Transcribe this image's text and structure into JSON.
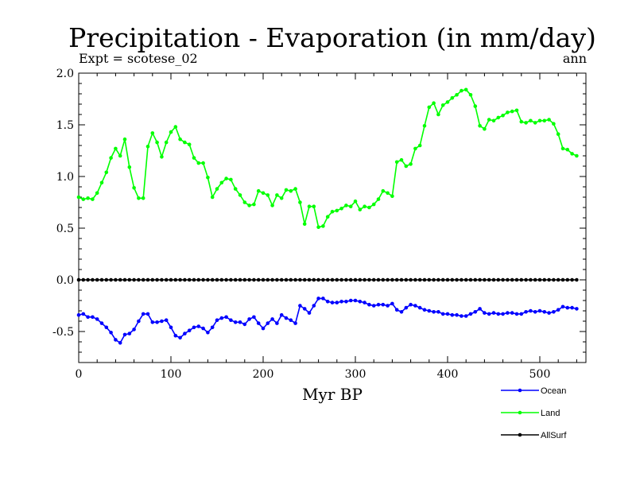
{
  "chart_data": {
    "type": "line",
    "title": "Precipitation - Evaporation (in mm/day)",
    "subtitle_left": "Expt = scotese_02",
    "subtitle_right": "ann",
    "xlabel": "Myr BP",
    "ylabel": "",
    "xlim": [
      0,
      550
    ],
    "ylim": [
      -0.8,
      2.0
    ],
    "x_ticks": [
      0,
      100,
      200,
      300,
      400,
      500
    ],
    "y_ticks": [
      -0.5,
      0.0,
      0.5,
      1.0,
      1.5,
      2.0
    ],
    "y_tick_labels": [
      "-0.5",
      "0.0",
      "0.5",
      "1.0",
      "1.5",
      "2.0"
    ],
    "grid": false,
    "legend_position": "bottom-right",
    "x": [
      0,
      5,
      10,
      15,
      20,
      25,
      30,
      35,
      40,
      45,
      50,
      55,
      60,
      65,
      70,
      75,
      80,
      85,
      90,
      95,
      100,
      105,
      110,
      115,
      120,
      125,
      130,
      135,
      140,
      145,
      150,
      155,
      160,
      165,
      170,
      175,
      180,
      185,
      190,
      195,
      200,
      205,
      210,
      215,
      220,
      225,
      230,
      235,
      240,
      245,
      250,
      255,
      260,
      265,
      270,
      275,
      280,
      285,
      290,
      295,
      300,
      305,
      310,
      315,
      320,
      325,
      330,
      335,
      340,
      345,
      350,
      355,
      360,
      365,
      370,
      375,
      380,
      385,
      390,
      395,
      400,
      405,
      410,
      415,
      420,
      425,
      430,
      435,
      440,
      445,
      450,
      455,
      460,
      465,
      470,
      475,
      480,
      485,
      490,
      495,
      500,
      505,
      510,
      515,
      520,
      525,
      530,
      535,
      540
    ],
    "series": [
      {
        "name": "Ocean",
        "color": "#0000ff",
        "values": [
          -0.34,
          -0.33,
          -0.36,
          -0.36,
          -0.38,
          -0.42,
          -0.46,
          -0.51,
          -0.58,
          -0.61,
          -0.53,
          -0.52,
          -0.48,
          -0.4,
          -0.33,
          -0.33,
          -0.41,
          -0.41,
          -0.4,
          -0.39,
          -0.46,
          -0.54,
          -0.56,
          -0.52,
          -0.49,
          -0.46,
          -0.45,
          -0.47,
          -0.51,
          -0.46,
          -0.39,
          -0.37,
          -0.36,
          -0.39,
          -0.41,
          -0.41,
          -0.43,
          -0.38,
          -0.36,
          -0.42,
          -0.47,
          -0.42,
          -0.38,
          -0.42,
          -0.34,
          -0.37,
          -0.39,
          -0.42,
          -0.25,
          -0.28,
          -0.32,
          -0.25,
          -0.18,
          -0.18,
          -0.21,
          -0.22,
          -0.22,
          -0.21,
          -0.21,
          -0.2,
          -0.2,
          -0.21,
          -0.22,
          -0.24,
          -0.25,
          -0.24,
          -0.24,
          -0.25,
          -0.23,
          -0.29,
          -0.31,
          -0.27,
          -0.24,
          -0.25,
          -0.27,
          -0.29,
          -0.3,
          -0.31,
          -0.31,
          -0.33,
          -0.33,
          -0.34,
          -0.34,
          -0.35,
          -0.35,
          -0.33,
          -0.31,
          -0.28,
          -0.32,
          -0.33,
          -0.32,
          -0.33,
          -0.33,
          -0.32,
          -0.32,
          -0.33,
          -0.33,
          -0.31,
          -0.3,
          -0.31,
          -0.3,
          -0.31,
          -0.32,
          -0.31,
          -0.29,
          -0.26,
          -0.27,
          -0.27,
          -0.28
        ]
      },
      {
        "name": "Land",
        "color": "#00ff00",
        "values": [
          0.8,
          0.78,
          0.79,
          0.78,
          0.84,
          0.94,
          1.04,
          1.18,
          1.27,
          1.2,
          1.36,
          1.09,
          0.89,
          0.79,
          0.79,
          1.29,
          1.42,
          1.33,
          1.19,
          1.33,
          1.43,
          1.48,
          1.36,
          1.33,
          1.31,
          1.18,
          1.13,
          1.13,
          0.99,
          0.8,
          0.88,
          0.94,
          0.98,
          0.97,
          0.88,
          0.82,
          0.75,
          0.72,
          0.73,
          0.86,
          0.84,
          0.82,
          0.72,
          0.82,
          0.79,
          0.87,
          0.86,
          0.88,
          0.75,
          0.54,
          0.71,
          0.71,
          0.51,
          0.52,
          0.61,
          0.66,
          0.67,
          0.69,
          0.72,
          0.71,
          0.76,
          0.68,
          0.71,
          0.7,
          0.73,
          0.78,
          0.86,
          0.84,
          0.81,
          1.14,
          1.16,
          1.1,
          1.12,
          1.27,
          1.3,
          1.49,
          1.67,
          1.71,
          1.6,
          1.69,
          1.72,
          1.76,
          1.79,
          1.83,
          1.84,
          1.79,
          1.68,
          1.49,
          1.46,
          1.55,
          1.54,
          1.57,
          1.59,
          1.62,
          1.63,
          1.64,
          1.53,
          1.52,
          1.54,
          1.52,
          1.54,
          1.54,
          1.55,
          1.51,
          1.41,
          1.27,
          1.26,
          1.22,
          1.2
        ]
      },
      {
        "name": "AllSurf",
        "color": "#000000",
        "values": [
          0,
          0,
          0,
          0,
          0,
          0,
          0,
          0,
          0,
          0,
          0,
          0,
          0,
          0,
          0,
          0,
          0,
          0,
          0,
          0,
          0,
          0,
          0,
          0,
          0,
          0,
          0,
          0,
          0,
          0,
          0,
          0,
          0,
          0,
          0,
          0,
          0,
          0,
          0,
          0,
          0,
          0,
          0,
          0,
          0,
          0,
          0,
          0,
          0,
          0,
          0,
          0,
          0,
          0,
          0,
          0,
          0,
          0,
          0,
          0,
          0,
          0,
          0,
          0,
          0,
          0,
          0,
          0,
          0,
          0,
          0,
          0,
          0,
          0,
          0,
          0,
          0,
          0,
          0,
          0,
          0,
          0,
          0,
          0,
          0,
          0,
          0,
          0,
          0,
          0,
          0,
          0,
          0,
          0,
          0,
          0,
          0,
          0,
          0,
          0,
          0,
          0,
          0,
          0,
          0,
          0,
          0,
          0,
          0
        ]
      }
    ]
  }
}
